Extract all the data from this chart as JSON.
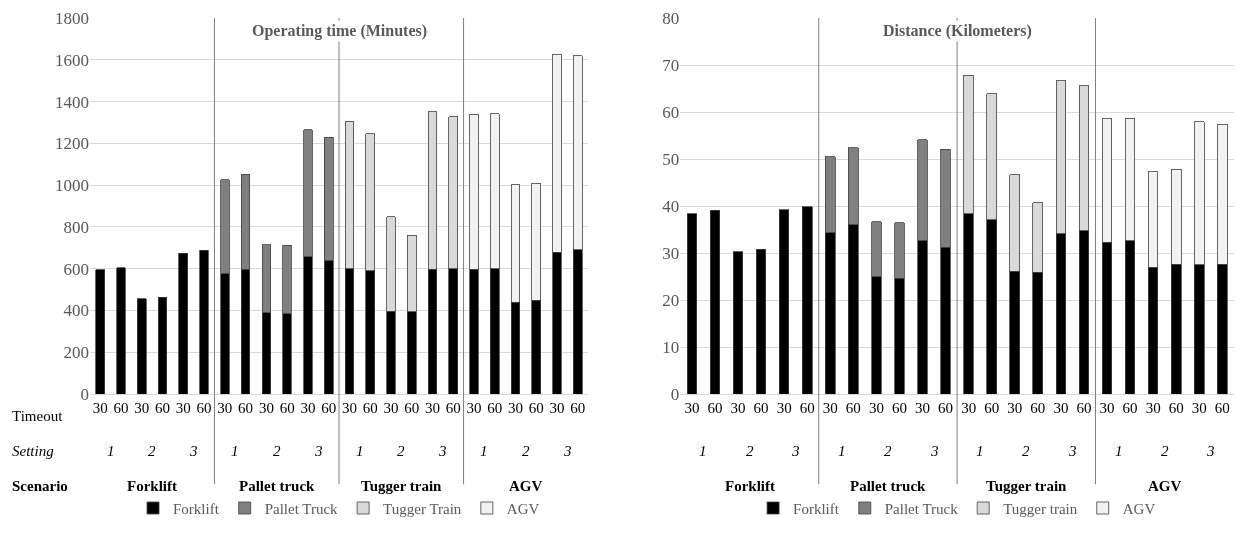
{
  "chart_data": [
    {
      "type": "bar",
      "stacked": true,
      "title": "Operating time (Minutes)",
      "categories": [
        "30",
        "60",
        "30",
        "60",
        "30",
        "60",
        "30",
        "60",
        "30",
        "60",
        "30",
        "60",
        "30",
        "60",
        "30",
        "60",
        "30",
        "60",
        "30",
        "60",
        "30",
        "60",
        "30",
        "60"
      ],
      "series": [
        {
          "name": "Forklift",
          "color": "#000000",
          "values": [
            595,
            605,
            455,
            462,
            675,
            688,
            575,
            598,
            390,
            385,
            658,
            638,
            600,
            590,
            395,
            393,
            597,
            600,
            597,
            600,
            440,
            448,
            678,
            690
          ]
        },
        {
          "name": "Pallet Truck",
          "color": "#808080",
          "values": [
            null,
            null,
            null,
            null,
            null,
            null,
            450,
            454,
            325,
            327,
            607,
            592,
            null,
            null,
            null,
            null,
            null,
            null,
            null,
            null,
            null,
            null,
            null,
            null
          ]
        },
        {
          "name": "Tugger Train",
          "color": "#d9d9d9",
          "values": [
            null,
            null,
            null,
            null,
            null,
            null,
            null,
            null,
            null,
            null,
            null,
            null,
            705,
            655,
            453,
            367,
            755,
            728,
            null,
            null,
            null,
            null,
            null,
            null
          ]
        },
        {
          "name": "AGV",
          "color": "#f2f2f2",
          "values": [
            null,
            null,
            null,
            null,
            null,
            null,
            null,
            null,
            null,
            null,
            null,
            null,
            null,
            null,
            null,
            null,
            null,
            null,
            743,
            742,
            562,
            562,
            949,
            930
          ]
        }
      ],
      "ylim": [
        0,
        1800
      ],
      "yticks": [
        0,
        200,
        400,
        600,
        800,
        1000,
        1200,
        1400,
        1600,
        1800
      ],
      "grid": "y",
      "legend": "bottom",
      "annotations": [
        "Timeout",
        "Setting",
        "Scenario",
        "1",
        "2",
        "3",
        "1",
        "2",
        "3",
        "1",
        "2",
        "3",
        "1",
        "2",
        "3",
        "Forklift",
        "Pallet truck",
        "Tugger train",
        "AGV"
      ]
    },
    {
      "type": "bar",
      "stacked": true,
      "title": "Distance (Kilometers)",
      "categories": [
        "30",
        "60",
        "30",
        "60",
        "30",
        "60",
        "30",
        "60",
        "30",
        "60",
        "30",
        "60",
        "30",
        "60",
        "30",
        "60",
        "30",
        "60",
        "30",
        "60",
        "30",
        "60",
        "30",
        "60"
      ],
      "series": [
        {
          "name": "Forklift",
          "color": "#000000",
          "values": [
            38.3,
            39.1,
            30.3,
            30.8,
            39.2,
            39.8,
            34.3,
            36.0,
            24.9,
            24.6,
            32.6,
            31.2,
            38.3,
            37.1,
            26.1,
            25.9,
            34.1,
            34.7,
            32.3,
            32.6,
            27.0,
            27.6,
            27.5,
            27.6
          ]
        },
        {
          "name": "Pallet Truck",
          "color": "#808080",
          "values": [
            null,
            null,
            null,
            null,
            null,
            null,
            16.2,
            16.4,
            11.8,
            11.8,
            21.5,
            20.9,
            null,
            null,
            null,
            null,
            null,
            null,
            null,
            null,
            null,
            null,
            null,
            null
          ]
        },
        {
          "name": "Tugger train",
          "color": "#d9d9d9",
          "values": [
            null,
            null,
            null,
            null,
            null,
            null,
            null,
            null,
            null,
            null,
            null,
            null,
            29.5,
            26.8,
            20.6,
            14.8,
            32.5,
            30.9,
            null,
            null,
            null,
            null,
            null,
            null
          ]
        },
        {
          "name": "AGV",
          "color": "#f2f2f2",
          "values": [
            null,
            null,
            null,
            null,
            null,
            null,
            null,
            null,
            null,
            null,
            null,
            null,
            null,
            null,
            null,
            null,
            null,
            null,
            26.3,
            26.1,
            20.3,
            20.2,
            30.4,
            29.8
          ]
        }
      ],
      "ylim": [
        0,
        80
      ],
      "yticks": [
        0,
        10,
        20,
        30,
        40,
        50,
        60,
        70,
        80
      ],
      "grid": "y",
      "legend": "bottom",
      "annotations": [
        "1",
        "2",
        "3",
        "1",
        "2",
        "3",
        "1",
        "2",
        "3",
        "1",
        "2",
        "3",
        "Forklift",
        "Pallet truck",
        "Tugger train",
        "AGV"
      ]
    }
  ]
}
